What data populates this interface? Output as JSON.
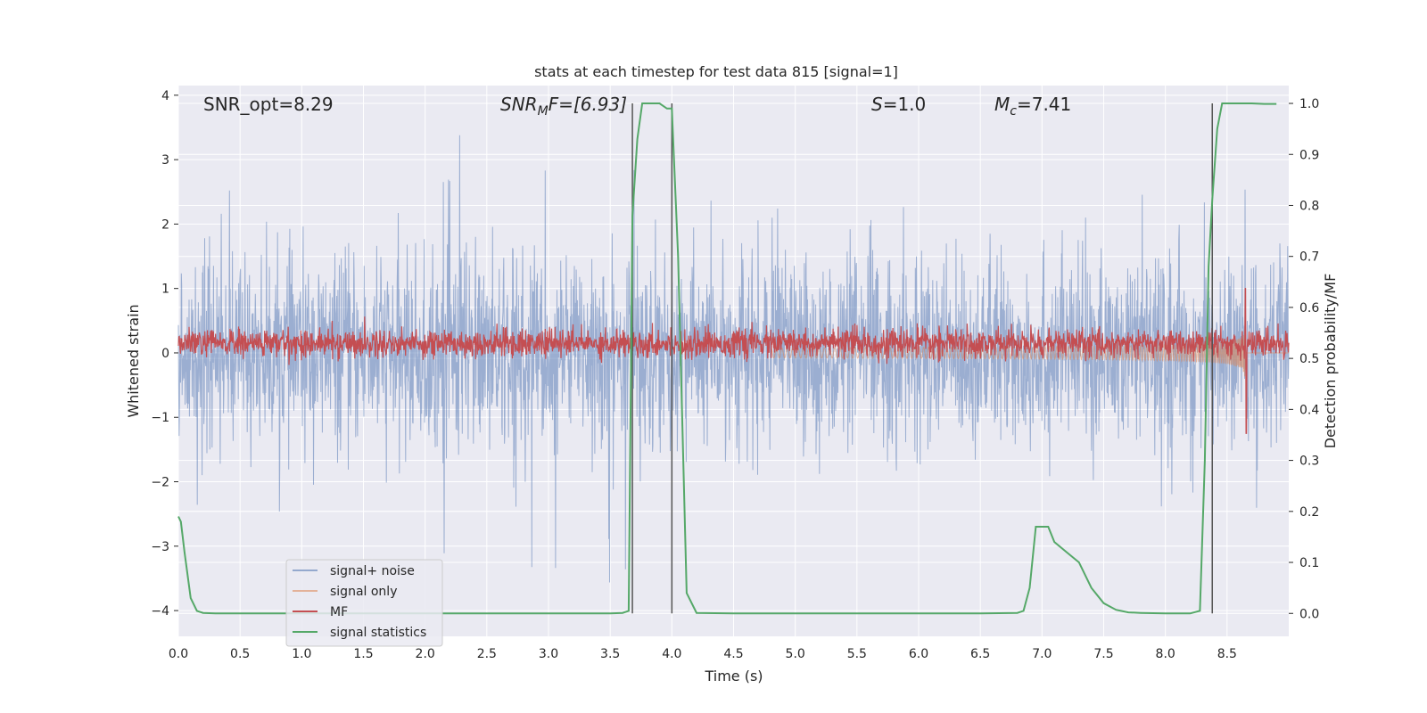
{
  "chart_data": {
    "type": "line",
    "title": "stats at each timestep for test data 815 [signal=1]",
    "xlabel": "Time (s)",
    "ylabel": "Whitened strain",
    "ylabel_right": "Detection probability/MF",
    "xlim": [
      0,
      9.0
    ],
    "ylim": [
      -4.4,
      4.15
    ],
    "ylim_right": [
      -0.045,
      1.035
    ],
    "x_ticks": [
      "0.0",
      "0.5",
      "1.0",
      "1.5",
      "2.0",
      "2.5",
      "3.0",
      "3.5",
      "4.0",
      "4.5",
      "5.0",
      "5.5",
      "6.0",
      "6.5",
      "7.0",
      "7.5",
      "8.0",
      "8.5"
    ],
    "y_ticks": [
      "4",
      "3",
      "2",
      "1",
      "0",
      "−1",
      "−2",
      "−3",
      "−4"
    ],
    "y_ticks_right": [
      "1.0",
      "0.9",
      "0.8",
      "0.7",
      "0.6",
      "0.5",
      "0.4",
      "0.3",
      "0.2",
      "0.1",
      "0.0"
    ],
    "grid": true,
    "annotations": {
      "snr_opt": "SNR_opt=8.29",
      "snr_mf_label": "SNR",
      "snr_mf_sub": "M",
      "snr_mf_rest": "F=[6.93]",
      "s_label": "S",
      "s_value": "=1.0",
      "mc_label": "M",
      "mc_sub": "c",
      "mc_value": "=7.41"
    },
    "legend": {
      "placement": "lower-left",
      "entries": [
        "signal+ noise",
        "signal only",
        "MF",
        "signal statistics"
      ]
    },
    "colors": {
      "noise": "#4c72b0",
      "signal": "#dd8452",
      "mf": "#c44e52",
      "stat": "#55a868",
      "vline": "#555555",
      "plot_bg": "#eaeaf2"
    },
    "vertical_lines_x": [
      3.68,
      4.0,
      8.38
    ],
    "series": [
      {
        "name": "signal statistics",
        "axis": "right",
        "x": [
          0.0,
          0.02,
          0.05,
          0.1,
          0.15,
          0.2,
          0.3,
          0.5,
          1.0,
          1.5,
          2.0,
          2.5,
          3.0,
          3.5,
          3.6,
          3.65,
          3.68,
          3.72,
          3.76,
          3.8,
          3.9,
          3.96,
          4.0,
          4.05,
          4.12,
          4.2,
          4.5,
          5.0,
          5.5,
          6.0,
          6.5,
          6.8,
          6.85,
          6.9,
          6.95,
          7.0,
          7.05,
          7.1,
          7.2,
          7.3,
          7.4,
          7.5,
          7.6,
          7.7,
          7.8,
          8.0,
          8.2,
          8.28,
          8.32,
          8.35,
          8.38,
          8.42,
          8.46,
          8.5,
          8.6,
          8.7,
          8.8,
          8.9
        ],
        "values": [
          0.19,
          0.18,
          0.12,
          0.03,
          0.005,
          0.001,
          0.0,
          0.0,
          0.0,
          0.0,
          0.0,
          0.0,
          0.0,
          0.0,
          0.001,
          0.005,
          0.78,
          0.93,
          1.0,
          1.0,
          1.0,
          0.99,
          0.99,
          0.7,
          0.04,
          0.001,
          0.0,
          0.0,
          0.0,
          0.0,
          0.0,
          0.001,
          0.005,
          0.05,
          0.17,
          0.17,
          0.17,
          0.14,
          0.12,
          0.1,
          0.05,
          0.02,
          0.007,
          0.002,
          0.001,
          0.0,
          0.0,
          0.005,
          0.3,
          0.68,
          0.81,
          0.95,
          1.0,
          1.0,
          1.0,
          1.0,
          0.999,
          0.999
        ]
      },
      {
        "name": "signal+ noise",
        "axis": "left",
        "kind": "noise",
        "x_range": [
          0.0,
          9.0
        ],
        "envelope_p98": 1.45,
        "spike_range": [
          2.0,
          3.75
        ]
      },
      {
        "name": "signal only",
        "axis": "left",
        "kind": "chirp",
        "start_x": 4.8,
        "peak_x": 8.65,
        "peak_amplitude": 0.8
      },
      {
        "name": "MF",
        "axis": "left",
        "kind": "noise",
        "x_range": [
          0.0,
          9.0
        ],
        "center": 0.15,
        "band": 0.35,
        "peak_x": 8.65,
        "peak_value": 1.0,
        "trough_value": -1.25
      }
    ]
  }
}
